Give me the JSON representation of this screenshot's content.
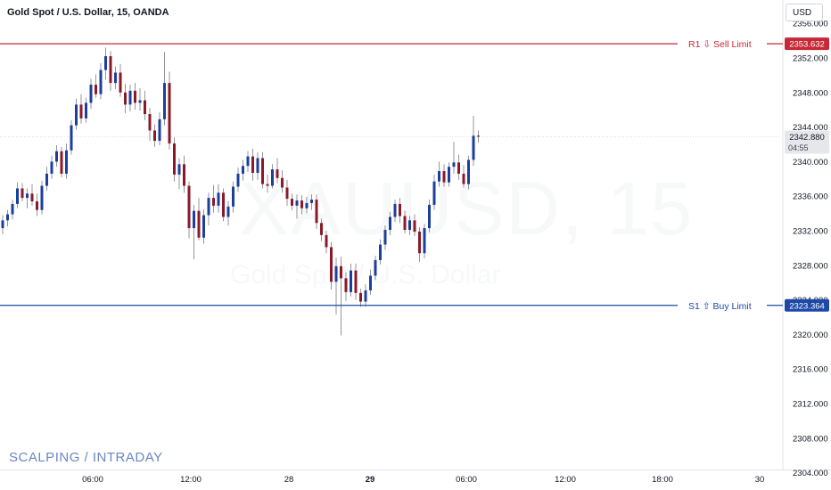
{
  "header": {
    "title": "Gold Spot / U.S. Dollar, 15, OANDA",
    "currency": "USD"
  },
  "watermark": {
    "symbol": "XAUUSD, 15",
    "description": "Gold Spot / U.S. Dollar"
  },
  "footer_note": "SCALPING /  INTRADAY",
  "colors": {
    "up": "#1c3f9e",
    "down": "#8b1a28",
    "wick": "#787b86",
    "resistance": "#c62835",
    "support": "#1c48a8"
  },
  "chart_data": {
    "type": "candlestick",
    "y_axis_ticks": [
      "2356.000",
      "2352.000",
      "2348.000",
      "2344.000",
      "2340.000",
      "2336.000",
      "2332.000",
      "2328.000",
      "2324.000",
      "2320.000",
      "2316.000",
      "2312.000",
      "2308.000",
      "2304.000"
    ],
    "x_axis_ticks": [
      {
        "label": "06:00",
        "bold": false
      },
      {
        "label": "12:00",
        "bold": false
      },
      {
        "label": "28",
        "bold": false
      },
      {
        "label": "29",
        "bold": true
      },
      {
        "label": "06:00",
        "bold": false
      },
      {
        "label": "12:00",
        "bold": false
      },
      {
        "label": "18:00",
        "bold": false
      },
      {
        "label": "30",
        "bold": false
      }
    ],
    "ylim": [
      2302.0,
      2358.7
    ],
    "last_price": {
      "value": "2342.880",
      "countdown": "04:55"
    },
    "levels": [
      {
        "name": "R1",
        "arrow": "⇩",
        "label": "Sell Limit",
        "price": 2353.632,
        "price_label": "2353.632",
        "kind": "resistance"
      },
      {
        "name": "S1",
        "arrow": "⇧",
        "label": "Buy Limit",
        "price": 2323.364,
        "price_label": "2323.364",
        "kind": "support"
      }
    ],
    "candles": [
      [
        2332.3,
        2333.8,
        2331.6,
        2333.2
      ],
      [
        2333.2,
        2334.4,
        2332.5,
        2333.9
      ],
      [
        2333.9,
        2335.6,
        2333.3,
        2335.1
      ],
      [
        2335.1,
        2337.6,
        2334.6,
        2336.9
      ],
      [
        2336.9,
        2337.5,
        2335.4,
        2335.8
      ],
      [
        2335.8,
        2336.9,
        2334.6,
        2336.3
      ],
      [
        2336.3,
        2337.4,
        2334.9,
        2335.4
      ],
      [
        2335.4,
        2336.3,
        2333.7,
        2334.4
      ],
      [
        2334.4,
        2337.8,
        2333.9,
        2337.2
      ],
      [
        2337.2,
        2339.4,
        2336.6,
        2338.6
      ],
      [
        2338.6,
        2340.7,
        2338.0,
        2340.0
      ],
      [
        2340.0,
        2341.9,
        2339.4,
        2341.2
      ],
      [
        2341.2,
        2341.7,
        2338.2,
        2338.6
      ],
      [
        2338.6,
        2342.1,
        2338.0,
        2341.3
      ],
      [
        2341.3,
        2344.8,
        2340.8,
        2344.2
      ],
      [
        2344.2,
        2347.3,
        2343.7,
        2346.6
      ],
      [
        2346.6,
        2347.8,
        2344.4,
        2345.0
      ],
      [
        2345.0,
        2347.4,
        2344.5,
        2346.8
      ],
      [
        2346.8,
        2349.6,
        2346.1,
        2348.9
      ],
      [
        2348.9,
        2350.1,
        2347.4,
        2347.8
      ],
      [
        2347.8,
        2351.4,
        2347.2,
        2350.6
      ],
      [
        2350.6,
        2353.2,
        2349.5,
        2352.2
      ],
      [
        2352.2,
        2352.8,
        2348.2,
        2349.1
      ],
      [
        2349.1,
        2351.0,
        2348.4,
        2350.3
      ],
      [
        2350.3,
        2351.3,
        2347.5,
        2348.0
      ],
      [
        2348.0,
        2349.0,
        2345.6,
        2346.6
      ],
      [
        2346.6,
        2348.9,
        2345.8,
        2348.2
      ],
      [
        2348.2,
        2349.1,
        2346.0,
        2346.8
      ],
      [
        2346.8,
        2348.5,
        2345.9,
        2347.1
      ],
      [
        2347.1,
        2348.2,
        2344.8,
        2345.5
      ],
      [
        2345.5,
        2346.2,
        2342.4,
        2343.6
      ],
      [
        2343.6,
        2344.3,
        2341.7,
        2342.4
      ],
      [
        2342.4,
        2345.7,
        2341.9,
        2344.9
      ],
      [
        2344.9,
        2352.7,
        2344.2,
        2349.1
      ],
      [
        2349.1,
        2350.4,
        2341.4,
        2342.1
      ],
      [
        2342.1,
        2342.8,
        2337.7,
        2338.5
      ],
      [
        2338.5,
        2340.4,
        2336.8,
        2339.7
      ],
      [
        2339.7,
        2340.7,
        2336.4,
        2337.2
      ],
      [
        2337.2,
        2337.7,
        2331.1,
        2332.3
      ],
      [
        2332.3,
        2335.0,
        2328.7,
        2334.3
      ],
      [
        2334.3,
        2335.8,
        2330.9,
        2331.2
      ],
      [
        2331.2,
        2334.5,
        2330.5,
        2333.8
      ],
      [
        2333.8,
        2336.4,
        2332.6,
        2335.8
      ],
      [
        2335.8,
        2337.3,
        2334.1,
        2334.9
      ],
      [
        2334.9,
        2337.4,
        2334.1,
        2336.4
      ],
      [
        2336.4,
        2336.9,
        2333.1,
        2333.6
      ],
      [
        2333.6,
        2335.4,
        2332.6,
        2334.8
      ],
      [
        2334.8,
        2337.7,
        2334.1,
        2337.1
      ],
      [
        2337.1,
        2339.3,
        2336.5,
        2338.6
      ],
      [
        2338.6,
        2340.2,
        2337.8,
        2339.5
      ],
      [
        2339.5,
        2341.2,
        2338.8,
        2340.6
      ],
      [
        2340.6,
        2341.5,
        2337.8,
        2338.7
      ],
      [
        2338.7,
        2341.1,
        2337.9,
        2340.4
      ],
      [
        2340.4,
        2341.1,
        2336.9,
        2337.4
      ],
      [
        2337.4,
        2338.5,
        2336.4,
        2337.2
      ],
      [
        2337.2,
        2339.7,
        2336.9,
        2339.1
      ],
      [
        2339.1,
        2340.4,
        2337.5,
        2338.1
      ],
      [
        2338.1,
        2339.0,
        2336.4,
        2337.0
      ],
      [
        2337.0,
        2337.9,
        2334.9,
        2335.7
      ],
      [
        2335.7,
        2336.3,
        2334.4,
        2334.9
      ],
      [
        2334.9,
        2336.2,
        2333.4,
        2335.5
      ],
      [
        2335.5,
        2336.1,
        2333.9,
        2334.6
      ],
      [
        2334.6,
        2335.9,
        2334.0,
        2335.2
      ],
      [
        2335.2,
        2336.2,
        2334.4,
        2335.6
      ],
      [
        2335.6,
        2336.2,
        2332.2,
        2332.9
      ],
      [
        2332.9,
        2333.4,
        2330.8,
        2331.5
      ],
      [
        2331.5,
        2332.0,
        2329.4,
        2330.1
      ],
      [
        2330.1,
        2330.7,
        2325.2,
        2326.1
      ],
      [
        2326.1,
        2328.9,
        2322.3,
        2327.9
      ],
      [
        2327.9,
        2329.0,
        2319.9,
        2326.5
      ],
      [
        2326.5,
        2327.2,
        2323.9,
        2324.9
      ],
      [
        2324.9,
        2328.2,
        2324.4,
        2327.4
      ],
      [
        2327.4,
        2328.2,
        2324.0,
        2324.8
      ],
      [
        2324.8,
        2325.3,
        2323.2,
        2323.8
      ],
      [
        2323.8,
        2325.8,
        2323.2,
        2325.1
      ],
      [
        2325.1,
        2327.5,
        2324.6,
        2326.8
      ],
      [
        2326.8,
        2329.1,
        2326.3,
        2328.6
      ],
      [
        2328.6,
        2331.0,
        2328.1,
        2330.4
      ],
      [
        2330.4,
        2332.6,
        2329.8,
        2332.1
      ],
      [
        2332.1,
        2334.2,
        2331.5,
        2333.6
      ],
      [
        2333.6,
        2335.6,
        2333.0,
        2335.1
      ],
      [
        2335.1,
        2335.8,
        2332.9,
        2333.7
      ],
      [
        2333.7,
        2334.3,
        2331.7,
        2332.1
      ],
      [
        2332.1,
        2333.7,
        2331.5,
        2333.2
      ],
      [
        2333.2,
        2333.9,
        2331.4,
        2331.9
      ],
      [
        2331.9,
        2332.4,
        2328.4,
        2329.4
      ],
      [
        2329.4,
        2332.8,
        2328.8,
        2332.3
      ],
      [
        2332.3,
        2335.6,
        2331.8,
        2335.0
      ],
      [
        2335.0,
        2338.5,
        2334.4,
        2337.7
      ],
      [
        2337.7,
        2340.0,
        2337.1,
        2338.9
      ],
      [
        2338.9,
        2339.7,
        2337.1,
        2337.6
      ],
      [
        2337.6,
        2339.9,
        2337.1,
        2339.4
      ],
      [
        2339.4,
        2342.3,
        2338.6,
        2339.9
      ],
      [
        2339.9,
        2340.8,
        2337.9,
        2338.6
      ],
      [
        2338.6,
        2339.6,
        2337.0,
        2337.4
      ],
      [
        2337.4,
        2340.7,
        2336.8,
        2340.2
      ],
      [
        2340.2,
        2345.3,
        2339.5,
        2343.0
      ],
      [
        2343.0,
        2343.6,
        2342.2,
        2342.88
      ]
    ]
  }
}
